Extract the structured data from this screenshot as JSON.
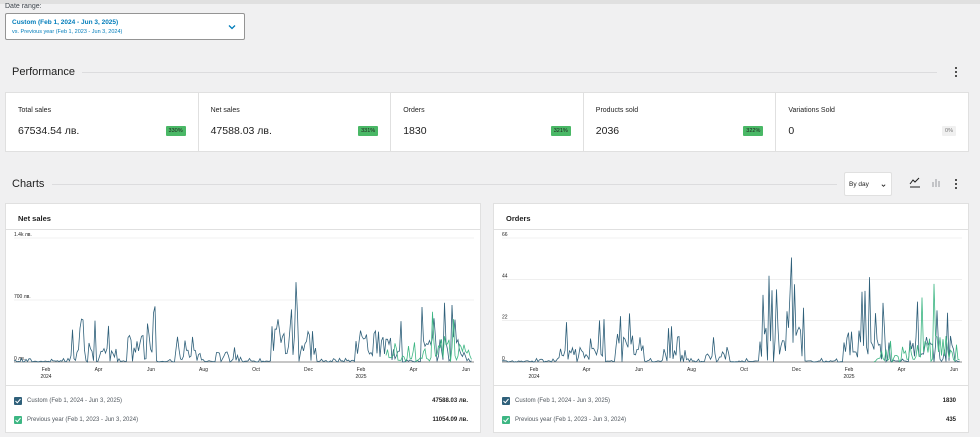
{
  "date_range": {
    "label": "Date range:",
    "primary": "Custom (Feb 1, 2024 - Jun 3, 2025)",
    "secondary": "vs. Previous year (Feb 1, 2023 - Jun 3, 2024)"
  },
  "performance": {
    "title": "Performance",
    "items": [
      {
        "label": "Total sales",
        "value": "67534.54 лв.",
        "delta": "330%",
        "color": "#4ab866"
      },
      {
        "label": "Net sales",
        "value": "47588.03 лв.",
        "delta": "331%",
        "color": "#4ab866"
      },
      {
        "label": "Orders",
        "value": "1830",
        "delta": "321%",
        "color": "#4ab866"
      },
      {
        "label": "Products sold",
        "value": "2036",
        "delta": "322%",
        "color": "#4ab866"
      },
      {
        "label": "Variations Sold",
        "value": "0",
        "delta": "0%",
        "color": "#f0f0f0"
      }
    ]
  },
  "charts": {
    "title": "Charts",
    "interval": "By day",
    "icons": [
      "line-chart-icon",
      "bar-chart-icon"
    ]
  },
  "colors": {
    "current": "#2f607a",
    "previous": "#3db683",
    "grid": "#e5e5e5"
  },
  "chart_data": [
    {
      "type": "line",
      "title": "Net sales",
      "y_ticks": [
        "0 лв.",
        "700 лв.",
        "1.4k лв."
      ],
      "ylim": [
        0,
        1400
      ],
      "x_ticks": [
        {
          "label": "Feb",
          "sub": "2024"
        },
        {
          "label": "Apr",
          "sub": ""
        },
        {
          "label": "Jun",
          "sub": ""
        },
        {
          "label": "Aug",
          "sub": ""
        },
        {
          "label": "Oct",
          "sub": ""
        },
        {
          "label": "Dec",
          "sub": ""
        },
        {
          "label": "Feb",
          "sub": "2025"
        },
        {
          "label": "Apr",
          "sub": ""
        },
        {
          "label": "Jun",
          "sub": ""
        }
      ],
      "series": [
        {
          "name": "Custom (Feb 1, 2024 - Jun 3, 2025)",
          "total": "47588.03 лв."
        },
        {
          "name": "Previous year (Feb 1, 2023 - Jun 3, 2024)",
          "total": "11054.09 лв."
        }
      ]
    },
    {
      "type": "line",
      "title": "Orders",
      "y_ticks": [
        "0",
        "22",
        "44",
        "66"
      ],
      "ylim": [
        0,
        66
      ],
      "x_ticks": [
        {
          "label": "Feb",
          "sub": "2024"
        },
        {
          "label": "Apr",
          "sub": ""
        },
        {
          "label": "Jun",
          "sub": ""
        },
        {
          "label": "Aug",
          "sub": ""
        },
        {
          "label": "Oct",
          "sub": ""
        },
        {
          "label": "Dec",
          "sub": ""
        },
        {
          "label": "Feb",
          "sub": "2025"
        },
        {
          "label": "Apr",
          "sub": ""
        },
        {
          "label": "Jun",
          "sub": ""
        }
      ],
      "series": [
        {
          "name": "Custom (Feb 1, 2024 - Jun 3, 2025)",
          "total": "1830"
        },
        {
          "name": "Previous year (Feb 1, 2023 - Jun 3, 2024)",
          "total": "435"
        }
      ]
    }
  ]
}
